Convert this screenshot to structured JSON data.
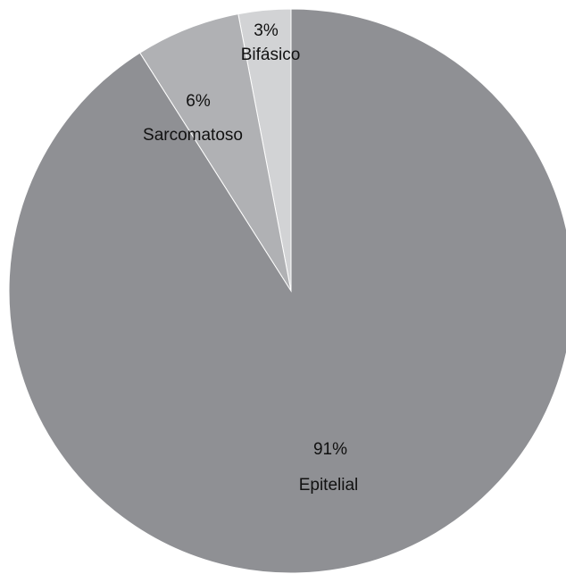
{
  "chart_data": {
    "type": "pie",
    "title": "",
    "start": "top",
    "direction": "counterclockwise",
    "slices": [
      {
        "label": "Bifásico",
        "value": 3,
        "value_label": "3%",
        "color": "#d2d3d5"
      },
      {
        "label": "Sarcomatoso",
        "value": 6,
        "value_label": "6%",
        "color": "#b0b1b4"
      },
      {
        "label": "Epitelial",
        "value": 91,
        "value_label": "91%",
        "color": "#8f9094"
      }
    ]
  }
}
